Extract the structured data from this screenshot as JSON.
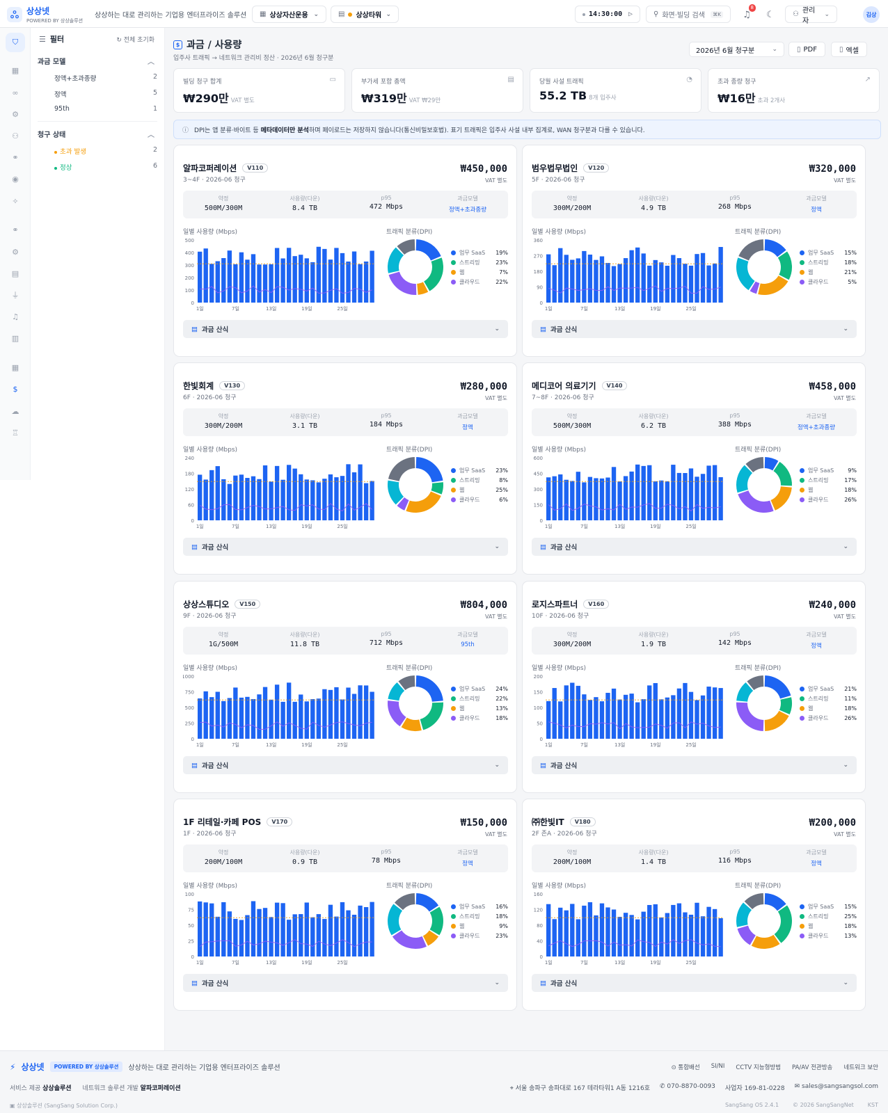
{
  "app": {
    "name": "상상넷",
    "powered": "POWERED BY 상상솔루션",
    "tagline": "상상하는 대로 관리하는 기업용 엔터프라이즈 솔루션"
  },
  "header": {
    "workspace": "상상자산운용",
    "site": "상상타워",
    "clock": "14:30:00",
    "search_placeholder": "화면·빌딩 검색",
    "search_shortcut": "⌘K",
    "notif_count": "8",
    "user_role": "관리자",
    "avatar": "김상"
  },
  "filter": {
    "title": "필터",
    "reset": "전체 초기화",
    "model_section": "과금 모델",
    "models": [
      {
        "label": "정액+초과종량",
        "count": "2"
      },
      {
        "label": "정액",
        "count": "5"
      },
      {
        "label": "95th",
        "count": "1"
      }
    ],
    "status_section": "청구 상태",
    "statuses": [
      {
        "label": "초과 발생",
        "count": "2",
        "color": "#f59e0b"
      },
      {
        "label": "정상",
        "count": "6",
        "color": "#10b981"
      }
    ]
  },
  "page": {
    "title": "과금 / 사용량",
    "subtitle": "입주사 트래픽 → 네트워크 관리비 정산 · 2026년 6월 청구분",
    "period": "2026년 6월 청구분",
    "pdf": "PDF",
    "excel": "엑셀"
  },
  "kpis": [
    {
      "label": "빌딩 청구 합계",
      "value": "₩290만",
      "sub": "VAT 별도"
    },
    {
      "label": "부가세 포함 총액",
      "value": "₩319만",
      "sub": "VAT ₩29만"
    },
    {
      "label": "당월 사설 트래픽",
      "value": "55.2 TB",
      "sub": "8개 입주사"
    },
    {
      "label": "초과 종량 청구",
      "value": "₩16만",
      "sub": "초과 2개사"
    }
  ],
  "notice": {
    "pre": "DPI는 앱 분류·바이트 등 ",
    "bold": "메타데이터만 분석",
    "post": "하며 페이로드는 저장하지 않습니다(통신비밀보호법). 표기 트래픽은 입주사 사설 내부 집계로, WAN 청구분과 다를 수 있습니다."
  },
  "labels": {
    "contract": "약정",
    "usage": "사용량(다운)",
    "p95": "p95",
    "model": "과금모델",
    "daily": "일별 사용량 (Mbps)",
    "dpi": "트래픽 분류(DPI)",
    "formula": "과금 산식",
    "vat": "VAT 별도"
  },
  "dpi_categories": [
    "업무 SaaS",
    "스트리밍",
    "웹",
    "클라우드"
  ],
  "dpi_colors": [
    "#1d64f2",
    "#10b981",
    "#f59e0b",
    "#8b5cf6",
    "#06b6d4",
    "#6b7280"
  ],
  "tenants": [
    {
      "name": "알파코퍼레이션",
      "vlan": "V110",
      "floor": "3~4F · 2026-06 청구",
      "amount": "₩450,000",
      "contract": "500M/300M",
      "usage": "8.4 TB",
      "p95": "472 Mbps",
      "model": "정액+초과종량",
      "yticks": [
        "0",
        "100",
        "200",
        "300",
        "400",
        "500"
      ],
      "pct": [
        "19%",
        "23%",
        "7%",
        "22%"
      ],
      "slices": [
        19,
        23,
        7,
        22,
        17,
        12
      ]
    },
    {
      "name": "범우법무법인",
      "vlan": "V120",
      "floor": "5F · 2026-06 청구",
      "amount": "₩320,000",
      "contract": "300M/200M",
      "usage": "4.9 TB",
      "p95": "268 Mbps",
      "model": "정액",
      "yticks": [
        "0",
        "90",
        "180",
        "270",
        "360"
      ],
      "pct": [
        "15%",
        "18%",
        "21%",
        "5%"
      ],
      "slices": [
        15,
        18,
        21,
        5,
        22,
        19
      ]
    },
    {
      "name": "한빛회계",
      "vlan": "V130",
      "floor": "6F · 2026-06 청구",
      "amount": "₩280,000",
      "contract": "300M/200M",
      "usage": "3.1 TB",
      "p95": "184 Mbps",
      "model": "정액",
      "yticks": [
        "0",
        "60",
        "120",
        "180",
        "240"
      ],
      "pct": [
        "23%",
        "8%",
        "25%",
        "6%"
      ],
      "slices": [
        23,
        8,
        25,
        6,
        16,
        22
      ]
    },
    {
      "name": "메디코어 의료기기",
      "vlan": "V140",
      "floor": "7~8F · 2026-06 청구",
      "amount": "₩458,000",
      "contract": "500M/300M",
      "usage": "6.2 TB",
      "p95": "388 Mbps",
      "model": "정액+초과종량",
      "yticks": [
        "0",
        "150",
        "300",
        "450",
        "600"
      ],
      "pct": [
        "9%",
        "17%",
        "18%",
        "26%"
      ],
      "slices": [
        9,
        17,
        18,
        26,
        18,
        12
      ]
    },
    {
      "name": "상상스튜디오",
      "vlan": "V150",
      "floor": "9F · 2026-06 청구",
      "amount": "₩804,000",
      "contract": "1G/500M",
      "usage": "11.8 TB",
      "p95": "712 Mbps",
      "model": "95th",
      "yticks": [
        "0",
        "250",
        "500",
        "750",
        "1000"
      ],
      "pct": [
        "24%",
        "22%",
        "13%",
        "18%"
      ],
      "slices": [
        24,
        22,
        13,
        18,
        12,
        11
      ]
    },
    {
      "name": "로지스파트너",
      "vlan": "V160",
      "floor": "10F · 2026-06 청구",
      "amount": "₩240,000",
      "contract": "300M/200M",
      "usage": "1.9 TB",
      "p95": "142 Mbps",
      "model": "정액",
      "yticks": [
        "0",
        "50",
        "100",
        "150",
        "200"
      ],
      "pct": [
        "21%",
        "11%",
        "18%",
        "26%"
      ],
      "slices": [
        21,
        11,
        18,
        26,
        13,
        11
      ]
    },
    {
      "name": "1F 리테일·카페 POS",
      "vlan": "V170",
      "floor": "1F · 2026-06 청구",
      "amount": "₩150,000",
      "contract": "200M/100M",
      "usage": "0.9 TB",
      "p95": "78 Mbps",
      "model": "정액",
      "yticks": [
        "0",
        "25",
        "50",
        "75",
        "100"
      ],
      "pct": [
        "16%",
        "18%",
        "9%",
        "23%"
      ],
      "slices": [
        16,
        18,
        9,
        23,
        20,
        14
      ]
    },
    {
      "name": "㈜한빛IT",
      "vlan": "V180",
      "floor": "2F 존A · 2026-06 청구",
      "amount": "₩200,000",
      "contract": "200M/100M",
      "usage": "1.4 TB",
      "p95": "116 Mbps",
      "model": "정액",
      "yticks": [
        "0",
        "40",
        "80",
        "120",
        "160"
      ],
      "pct": [
        "15%",
        "25%",
        "18%",
        "13%"
      ],
      "slices": [
        15,
        25,
        18,
        13,
        16,
        13
      ]
    }
  ],
  "xticks": [
    "1일",
    "7일",
    "13일",
    "19일",
    "25일"
  ],
  "footer": {
    "brand": "상상넷",
    "powered": "POWERED BY 상상솔루션",
    "tagline": "상상하는 대로 관리하는 기업용 엔터프라이즈 솔루션",
    "links": [
      "통합배선",
      "SI/NI",
      "CCTV 지능형방범",
      "PA/AV 전관방송",
      "네트워크 보안"
    ],
    "provider_label": "서비스 제공",
    "provider": "상상솔루션",
    "dev_label": "네트워크 솔루션 개발",
    "dev": "알파코퍼레이션",
    "address": "서울 송파구 송파대로 167 테라타워1 A동 1216호",
    "phone": "070-8870-0093",
    "bizno": "사업자 169-81-0228",
    "email": "sales@sangsangsol.com",
    "corp": "상상솔루션 (SangSang Solution Corp.)",
    "version": "SangSang OS 2.4.1",
    "copyright": "© 2026 SangSangNet",
    "tz": "KST"
  }
}
